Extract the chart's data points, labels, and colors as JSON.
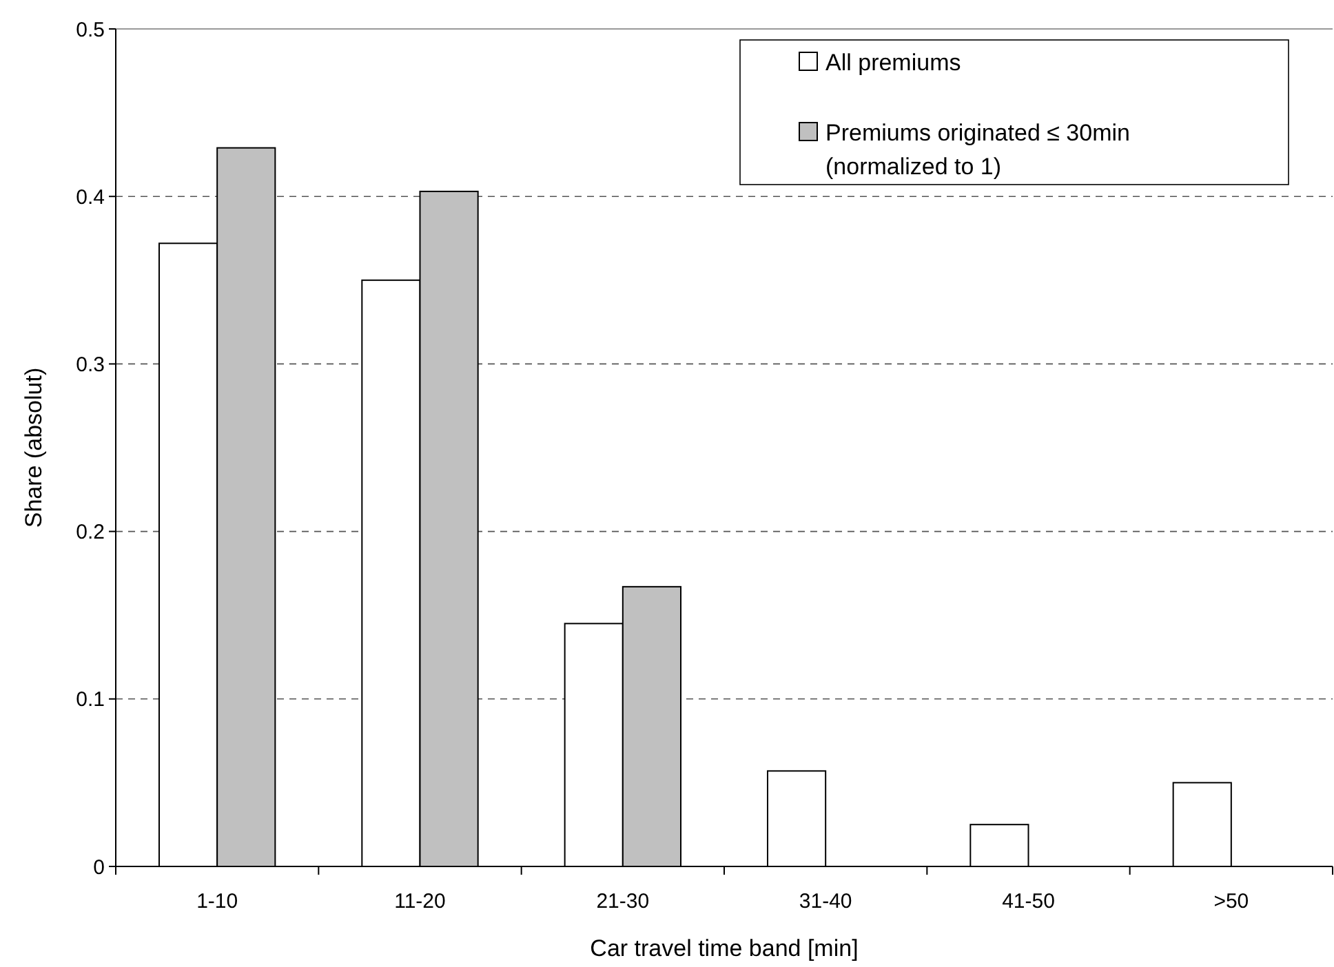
{
  "chart_data": {
    "type": "bar",
    "xlabel": "Car travel time band [min]",
    "ylabel": "Share (absolut)",
    "categories": [
      "1-10",
      "11-20",
      "21-30",
      "31-40",
      "41-50",
      ">50"
    ],
    "series": [
      {
        "name": "All premiums",
        "color": "#ffffff",
        "values": [
          0.372,
          0.35,
          0.145,
          0.057,
          0.025,
          0.05
        ]
      },
      {
        "name": "Premiums originated ≤ 30min\n(normalized to 1)",
        "color": "#c0c0c0",
        "values": [
          0.429,
          0.403,
          0.167,
          null,
          null,
          null
        ]
      }
    ],
    "ylim": [
      0,
      0.5
    ],
    "yticks": [
      0,
      0.1,
      0.2,
      0.3,
      0.4,
      0.5
    ],
    "grid": "y",
    "legend": "top right"
  }
}
